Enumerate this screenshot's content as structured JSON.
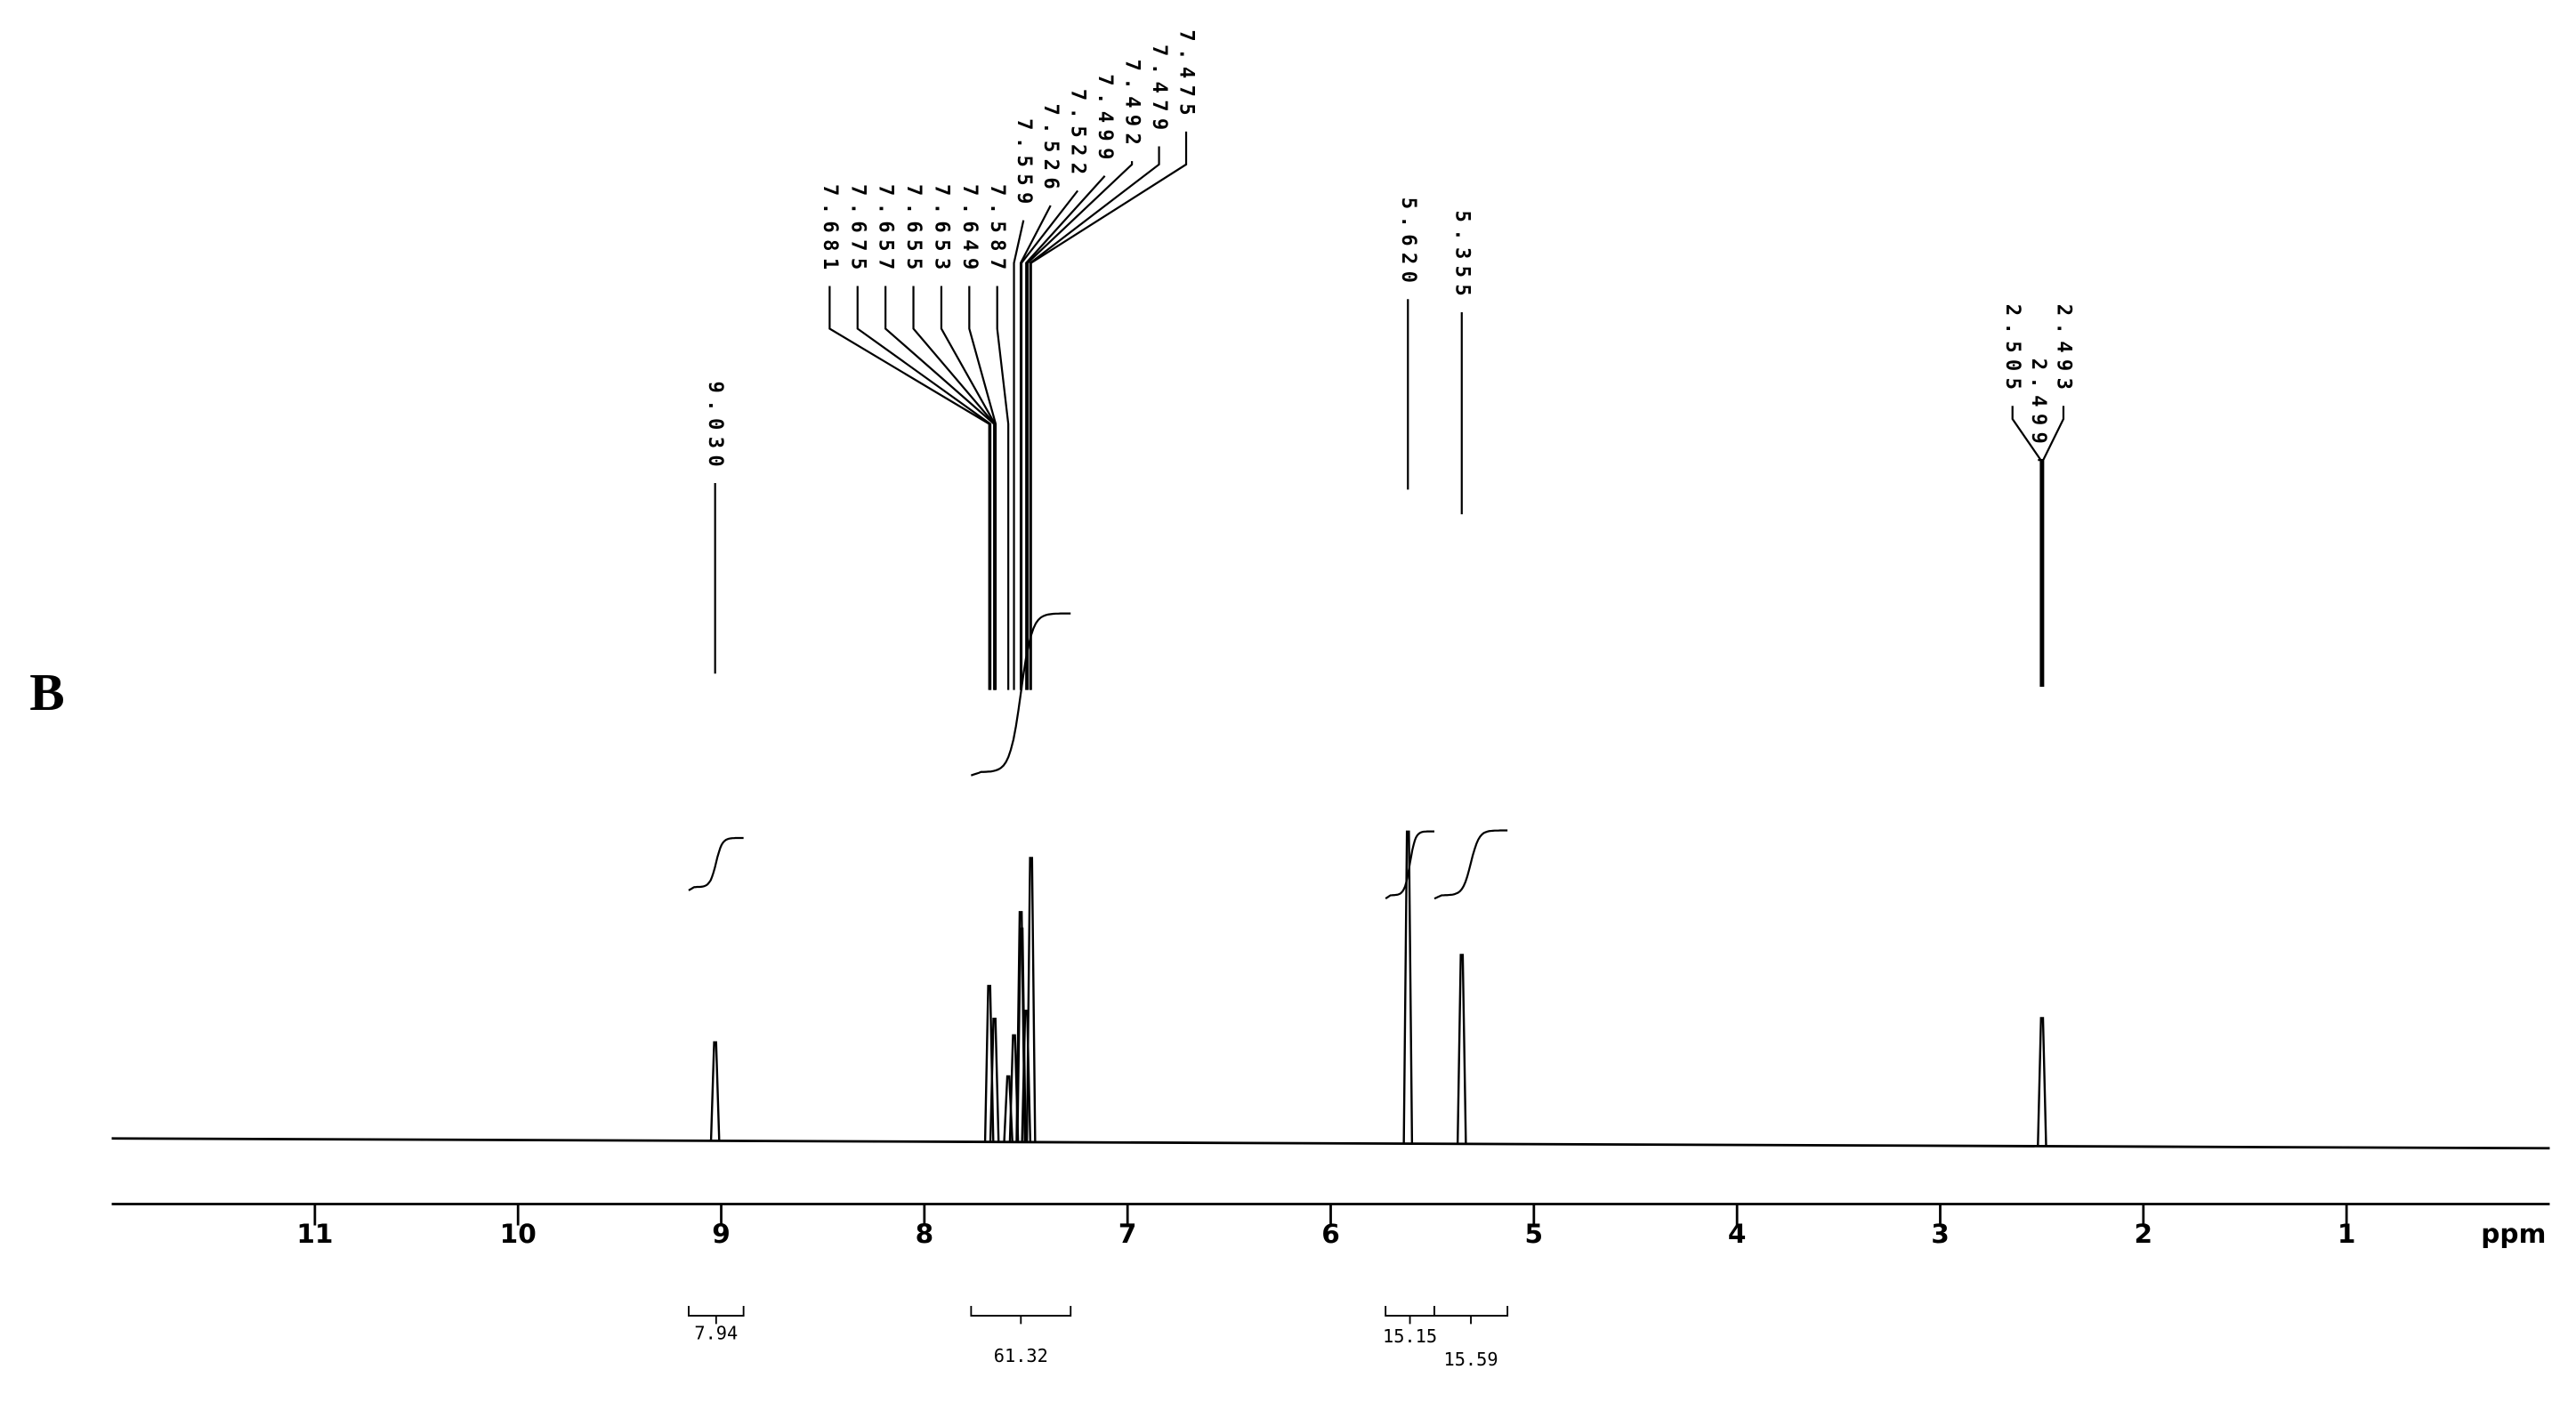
{
  "chart_data": {
    "type": "nmr",
    "panel_label": "B",
    "xlabel": "ppm",
    "xlim": [
      12,
      0
    ],
    "xticks": [
      11,
      10,
      9,
      8,
      7,
      6,
      5,
      4,
      3,
      2,
      1
    ],
    "color": "#000000",
    "peaks": {
      "x": [
        9.03,
        7.681,
        7.655,
        7.587,
        7.559,
        7.526,
        7.522,
        7.499,
        7.475,
        5.62,
        5.355,
        2.499
      ],
      "values": [
        60,
        95,
        75,
        40,
        65,
        140,
        130,
        80,
        173,
        190,
        115,
        78
      ]
    },
    "peak_labels": [
      {
        "value": 9.03,
        "label": "9.030"
      },
      7.681,
      7.675,
      7.657,
      7.655,
      7.653,
      7.649,
      7.587,
      7.559,
      7.526,
      7.522,
      7.499,
      7.492,
      7.479,
      7.475,
      {
        "value": 5.62,
        "label": "5.620"
      },
      5.355,
      2.505,
      2.499,
      2.493
    ],
    "integrals": {
      "ranges": [
        [
          9.16,
          8.89
        ],
        [
          7.77,
          7.28
        ],
        [
          5.73,
          5.49
        ],
        [
          5.49,
          5.13
        ]
      ],
      "values": [
        7.94,
        61.32,
        15.15,
        15.59
      ]
    }
  }
}
